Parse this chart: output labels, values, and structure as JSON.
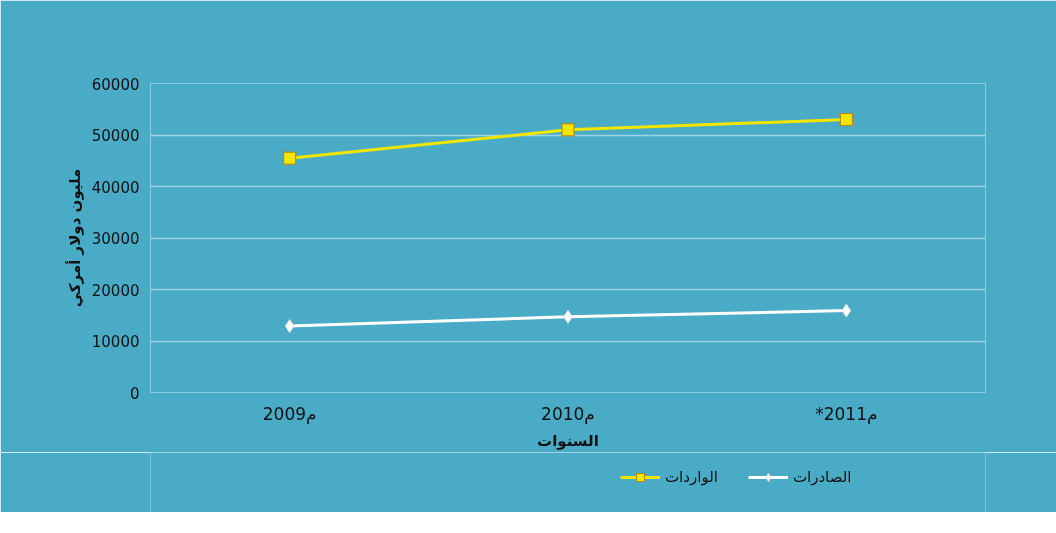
{
  "chart_data": {
    "type": "line",
    "xlabel": "السنوات",
    "ylabel": "مليون دولار أمركي",
    "categories": [
      "2009م",
      "2010م",
      "*2011م"
    ],
    "series": [
      {
        "name": "الواردات",
        "color": "#f2e600",
        "values": [
          45500,
          51000,
          53000
        ],
        "marker": "square"
      },
      {
        "name": "الصادرات",
        "color": "#ffffff",
        "values": [
          12900,
          14700,
          15900
        ],
        "marker": "diamond"
      }
    ],
    "ylim": [
      0,
      60000
    ],
    "yticks": [
      0,
      10000,
      20000,
      30000,
      40000,
      50000,
      60000
    ],
    "grid": "y",
    "legend": "bottom"
  }
}
